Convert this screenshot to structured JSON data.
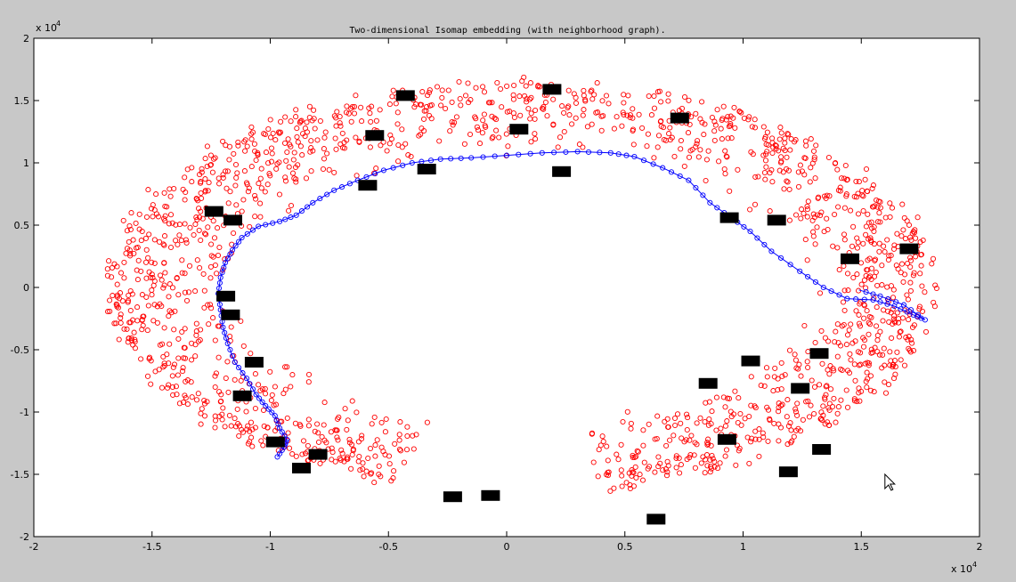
{
  "chart_data": {
    "type": "scatter",
    "title": "Two-dimensional Isomap embedding (with neighborhood graph).",
    "xlabel": "",
    "ylabel": "",
    "xlim": [
      -20000,
      20000
    ],
    "ylim": [
      -20000,
      20000
    ],
    "x_ticks": [
      -20000,
      -15000,
      -10000,
      -5000,
      0,
      5000,
      10000,
      15000,
      20000
    ],
    "y_ticks": [
      -20000,
      -15000,
      -10000,
      -5000,
      0,
      5000,
      10000,
      15000,
      20000
    ],
    "x_tick_labels": [
      "-2",
      "-1.5",
      "-1",
      "-0.5",
      "0",
      "0.5",
      "1",
      "1.5",
      "2"
    ],
    "y_tick_labels": [
      "-2",
      "-1.5",
      "-1",
      "-0.5",
      "0",
      "0.5",
      "1",
      "1.5",
      "2"
    ],
    "axis_multiplier": {
      "base": "x 10",
      "exponent": "4"
    },
    "grid": false,
    "colors": {
      "points": "#ff0000",
      "graph": "#0000ff",
      "markers": "#000000",
      "background": "#c8c8c8",
      "axes_bg": "#ffffff"
    },
    "point_cloud": {
      "description_of_shape": "horseshoe ring",
      "count": 1700,
      "center": [
        600,
        0
      ],
      "outer_radius_x": 17500,
      "outer_radius_y": 16500,
      "inner_radius_x": 12000,
      "inner_radius_y": 10500,
      "gap_angle_deg": [
        252,
        282
      ]
    },
    "path_points": [
      [
        -9700,
        -13600
      ],
      [
        -9400,
        -12800
      ],
      [
        -9300,
        -12200
      ],
      [
        -9600,
        -11300
      ],
      [
        -9800,
        -10300
      ],
      [
        -10200,
        -9500
      ],
      [
        -10600,
        -8600
      ],
      [
        -11000,
        -7300
      ],
      [
        -11500,
        -6000
      ],
      [
        -11800,
        -4500
      ],
      [
        -12000,
        -3200
      ],
      [
        -12100,
        -1800
      ],
      [
        -12200,
        -500
      ],
      [
        -12100,
        800
      ],
      [
        -11900,
        2000
      ],
      [
        -11600,
        3000
      ],
      [
        -11200,
        4000
      ],
      [
        -10500,
        4900
      ],
      [
        -9600,
        5300
      ],
      [
        -8900,
        5800
      ],
      [
        -8200,
        6800
      ],
      [
        -7300,
        7800
      ],
      [
        -6300,
        8600
      ],
      [
        -5200,
        9400
      ],
      [
        -4000,
        10000
      ],
      [
        -2800,
        10300
      ],
      [
        -1500,
        10400
      ],
      [
        0,
        10600
      ],
      [
        1500,
        10800
      ],
      [
        3000,
        10900
      ],
      [
        4400,
        10800
      ],
      [
        5400,
        10500
      ],
      [
        6600,
        9600
      ],
      [
        7700,
        8600
      ],
      [
        8600,
        6800
      ],
      [
        9500,
        5600
      ],
      [
        10300,
        4500
      ],
      [
        11200,
        2900
      ],
      [
        12400,
        1300
      ],
      [
        13400,
        0
      ],
      [
        14400,
        -900
      ],
      [
        15500,
        -1000
      ],
      [
        16400,
        -1500
      ],
      [
        17200,
        -2200
      ],
      [
        17700,
        -2600
      ],
      [
        16800,
        -1400
      ],
      [
        15800,
        -700
      ],
      [
        14900,
        -200
      ]
    ],
    "markers": [
      [
        1900,
        15900
      ],
      [
        -4300,
        15400
      ],
      [
        7300,
        13600
      ],
      [
        500,
        12700
      ],
      [
        -5600,
        12200
      ],
      [
        -3400,
        9500
      ],
      [
        2300,
        9300
      ],
      [
        -5900,
        8200
      ],
      [
        -12400,
        6100
      ],
      [
        -11600,
        5400
      ],
      [
        9400,
        5600
      ],
      [
        11400,
        5400
      ],
      [
        17000,
        3100
      ],
      [
        14500,
        2300
      ],
      [
        -11900,
        -700
      ],
      [
        -11700,
        -2200
      ],
      [
        13200,
        -5300
      ],
      [
        10300,
        -5900
      ],
      [
        -10700,
        -6000
      ],
      [
        8500,
        -7700
      ],
      [
        12400,
        -8100
      ],
      [
        -11200,
        -8700
      ],
      [
        9300,
        -12200
      ],
      [
        -9800,
        -12400
      ],
      [
        13300,
        -13000
      ],
      [
        -8000,
        -13400
      ],
      [
        -8700,
        -14500
      ],
      [
        11900,
        -14800
      ],
      [
        -2300,
        -16800
      ],
      [
        -700,
        -16700
      ],
      [
        6300,
        -18600
      ]
    ],
    "cursor": [
      16000,
      -15000
    ]
  }
}
